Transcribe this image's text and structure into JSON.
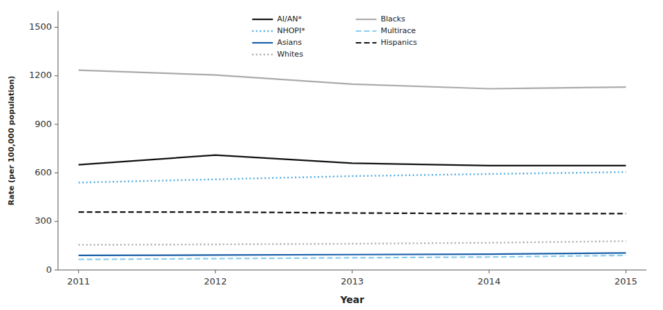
{
  "chart_data": {
    "type": "line",
    "xlabel": "Year",
    "ylabel": "Rate (per 100,000 population)",
    "x": [
      2011,
      2012,
      2013,
      2014,
      2015
    ],
    "xlim": [
      2010.85,
      2015.15
    ],
    "xticks": [
      2011,
      2012,
      2013,
      2014,
      2015
    ],
    "ylim": [
      0,
      1600
    ],
    "yticks": [
      0,
      300,
      600,
      900,
      1200,
      1500
    ],
    "grid": false,
    "legend": "top",
    "series": [
      {
        "name": "AI/AN*",
        "color": "#111111",
        "line_style": "solid",
        "values": [
          650,
          710,
          660,
          645,
          645
        ]
      },
      {
        "name": "NHOPI*",
        "color": "#4daadd",
        "line_style": "dotted",
        "values": [
          540,
          560,
          580,
          593,
          605
        ]
      },
      {
        "name": "Asians",
        "color": "#1a5fa8",
        "line_style": "solid",
        "values": [
          90,
          92,
          95,
          98,
          105
        ]
      },
      {
        "name": "Whites",
        "color": "#aaaaaa",
        "line_style": "dotted",
        "values": [
          155,
          158,
          162,
          168,
          178
        ]
      },
      {
        "name": "Blacks",
        "color": "#aaaaaa",
        "line_style": "solid",
        "values": [
          1235,
          1205,
          1148,
          1120,
          1130
        ]
      },
      {
        "name": "Multirace",
        "color": "#88ccee",
        "line_style": "dashed",
        "values": [
          65,
          70,
          75,
          80,
          90
        ]
      },
      {
        "name": "Hispanics",
        "color": "#111111",
        "line_style": "dashed",
        "values": [
          358,
          358,
          352,
          348,
          348
        ]
      }
    ]
  }
}
